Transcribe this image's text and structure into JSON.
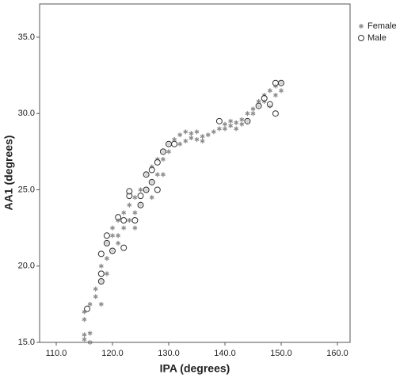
{
  "chart_data": {
    "type": "scatter",
    "x_label": "IPA (degrees)",
    "y_label": "AA1 (degrees)",
    "xlim": [
      107.04,
      162.25
    ],
    "ylim": [
      15,
      37.18
    ],
    "xticks": [
      {
        "value": 110,
        "label": "110.0"
      },
      {
        "value": 120,
        "label": "120.0"
      },
      {
        "value": 130,
        "label": "130.0"
      },
      {
        "value": 140,
        "label": "140.0"
      },
      {
        "value": 150,
        "label": "150.0"
      },
      {
        "value": 160,
        "label": "160.0"
      }
    ],
    "yticks": [
      {
        "value": 15,
        "label": "15.0"
      },
      {
        "value": 20,
        "label": "20.0"
      },
      {
        "value": 25,
        "label": "25.0"
      },
      {
        "value": 30,
        "label": "30.0"
      },
      {
        "value": 35,
        "label": "35.0"
      }
    ],
    "legend": "top-right",
    "series": [
      {
        "name": "Female",
        "marker": "star",
        "color": "#8c8c8c",
        "x": [
          115,
          115,
          116,
          116,
          115,
          115,
          116,
          117,
          117,
          118,
          118,
          118,
          119,
          119,
          119,
          120,
          120,
          120,
          121,
          121,
          122,
          122,
          123,
          123,
          124,
          124,
          125,
          125,
          126,
          126,
          127,
          127,
          128,
          128,
          129,
          129,
          130,
          130,
          131,
          132,
          132,
          133,
          133,
          134,
          134,
          135,
          135,
          136,
          136,
          137,
          138,
          139,
          140,
          140,
          141,
          141,
          142,
          142,
          143,
          143,
          144,
          144,
          145,
          145,
          146,
          146,
          147,
          147,
          148,
          148,
          149,
          149,
          150,
          150,
          121,
          124,
          127,
          129
        ],
        "values": [
          15.2,
          15.5,
          15,
          15.6,
          16.5,
          17,
          17.5,
          18,
          18.5,
          17.5,
          19,
          20,
          19.5,
          20.5,
          21.5,
          21,
          22,
          22.5,
          22,
          23,
          22.5,
          23.5,
          23,
          24,
          23.5,
          24.5,
          24,
          25,
          25,
          26,
          25.5,
          26.5,
          26,
          27,
          27,
          27.5,
          27.5,
          28,
          28.3,
          28,
          28.6,
          28.2,
          28.8,
          28.4,
          28.7,
          28.3,
          28.8,
          28.5,
          28.2,
          28.6,
          28.8,
          29,
          29,
          29.3,
          29.2,
          29.5,
          29,
          29.4,
          29.3,
          29.6,
          29.5,
          30,
          30,
          30.3,
          30.5,
          30.8,
          30.8,
          31.2,
          31.5,
          30.5,
          31.8,
          31.2,
          32,
          31.5,
          21.5,
          22.5,
          24.5,
          26
        ]
      },
      {
        "name": "Male",
        "marker": "circle",
        "color": "#333333",
        "x": [
          115.5,
          118,
          118,
          118,
          119,
          119,
          120,
          121,
          122,
          122,
          123,
          123,
          124,
          125,
          125,
          126,
          126,
          127,
          127,
          128,
          128,
          129,
          130,
          131,
          139,
          144,
          146,
          147,
          148,
          149,
          150,
          149
        ],
        "values": [
          17.2,
          19,
          19.5,
          20.8,
          21.5,
          22,
          21,
          23.2,
          21.2,
          23,
          24.6,
          24.9,
          23,
          24,
          24.6,
          25,
          26,
          25.5,
          26.3,
          25,
          26.8,
          27.5,
          28,
          28,
          29.5,
          29.5,
          30.5,
          31,
          30.6,
          32,
          32,
          30
        ]
      }
    ]
  }
}
